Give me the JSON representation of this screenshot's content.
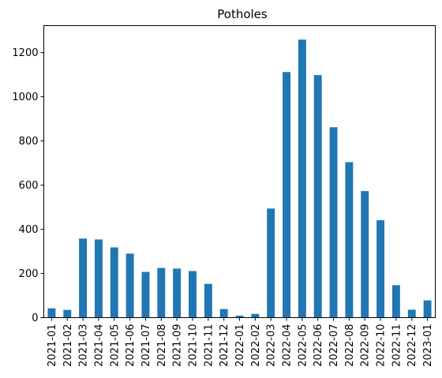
{
  "chart_data": {
    "type": "bar",
    "title": "Potholes",
    "xlabel": "",
    "ylabel": "",
    "categories": [
      "2021-01",
      "2021-02",
      "2021-03",
      "2021-04",
      "2021-05",
      "2021-06",
      "2021-07",
      "2021-08",
      "2021-09",
      "2021-10",
      "2021-11",
      "2021-12",
      "2022-01",
      "2022-02",
      "2022-03",
      "2022-04",
      "2022-05",
      "2022-06",
      "2022-07",
      "2022-08",
      "2022-09",
      "2022-10",
      "2022-11",
      "2022-12",
      "2023-01"
    ],
    "values": [
      42,
      35,
      358,
      354,
      318,
      290,
      207,
      225,
      222,
      211,
      153,
      39,
      9,
      17,
      494,
      1112,
      1259,
      1098,
      862,
      704,
      573,
      441,
      147,
      36,
      78
    ],
    "ylim": [
      0,
      1322
    ],
    "yticks": [
      0,
      200,
      400,
      600,
      800,
      1000,
      1200
    ],
    "bar_color": "#1f77b4",
    "grid": false,
    "legend": "none"
  }
}
